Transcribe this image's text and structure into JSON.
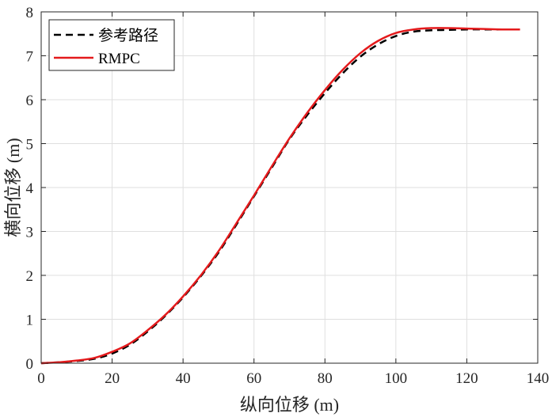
{
  "chart_data": {
    "type": "line",
    "title": "",
    "xlabel": "纵向位移 (m)",
    "ylabel": "横向位移 (m)",
    "xlim": [
      0,
      140
    ],
    "ylim": [
      0,
      8
    ],
    "xticks": [
      0,
      20,
      40,
      60,
      80,
      100,
      120,
      140
    ],
    "yticks": [
      0,
      1,
      2,
      3,
      4,
      5,
      6,
      7,
      8
    ],
    "grid": true,
    "legend_position": "top-left",
    "series": [
      {
        "name": "参考路径",
        "style": "dashed",
        "color": "#000000",
        "x": [
          0,
          5,
          10,
          15,
          20,
          25,
          30,
          35,
          40,
          45,
          50,
          55,
          60,
          65,
          70,
          75,
          80,
          85,
          90,
          95,
          100,
          105,
          110,
          115,
          120,
          125,
          130,
          135
        ],
        "y": [
          0.0,
          0.02,
          0.05,
          0.1,
          0.22,
          0.42,
          0.72,
          1.08,
          1.5,
          1.98,
          2.52,
          3.15,
          3.8,
          4.45,
          5.1,
          5.65,
          6.15,
          6.6,
          6.98,
          7.26,
          7.45,
          7.55,
          7.58,
          7.59,
          7.6,
          7.6,
          7.6,
          7.6
        ]
      },
      {
        "name": "RMPC",
        "style": "solid",
        "color": "#e41a1c",
        "x": [
          0,
          5,
          10,
          15,
          20,
          25,
          30,
          35,
          40,
          45,
          50,
          55,
          60,
          65,
          70,
          75,
          80,
          85,
          90,
          95,
          100,
          105,
          110,
          115,
          120,
          125,
          130,
          135
        ],
        "y": [
          0.0,
          0.02,
          0.06,
          0.12,
          0.26,
          0.45,
          0.75,
          1.1,
          1.52,
          2.0,
          2.55,
          3.18,
          3.82,
          4.48,
          5.12,
          5.7,
          6.22,
          6.68,
          7.06,
          7.34,
          7.52,
          7.6,
          7.63,
          7.63,
          7.62,
          7.61,
          7.6,
          7.6
        ]
      }
    ]
  }
}
